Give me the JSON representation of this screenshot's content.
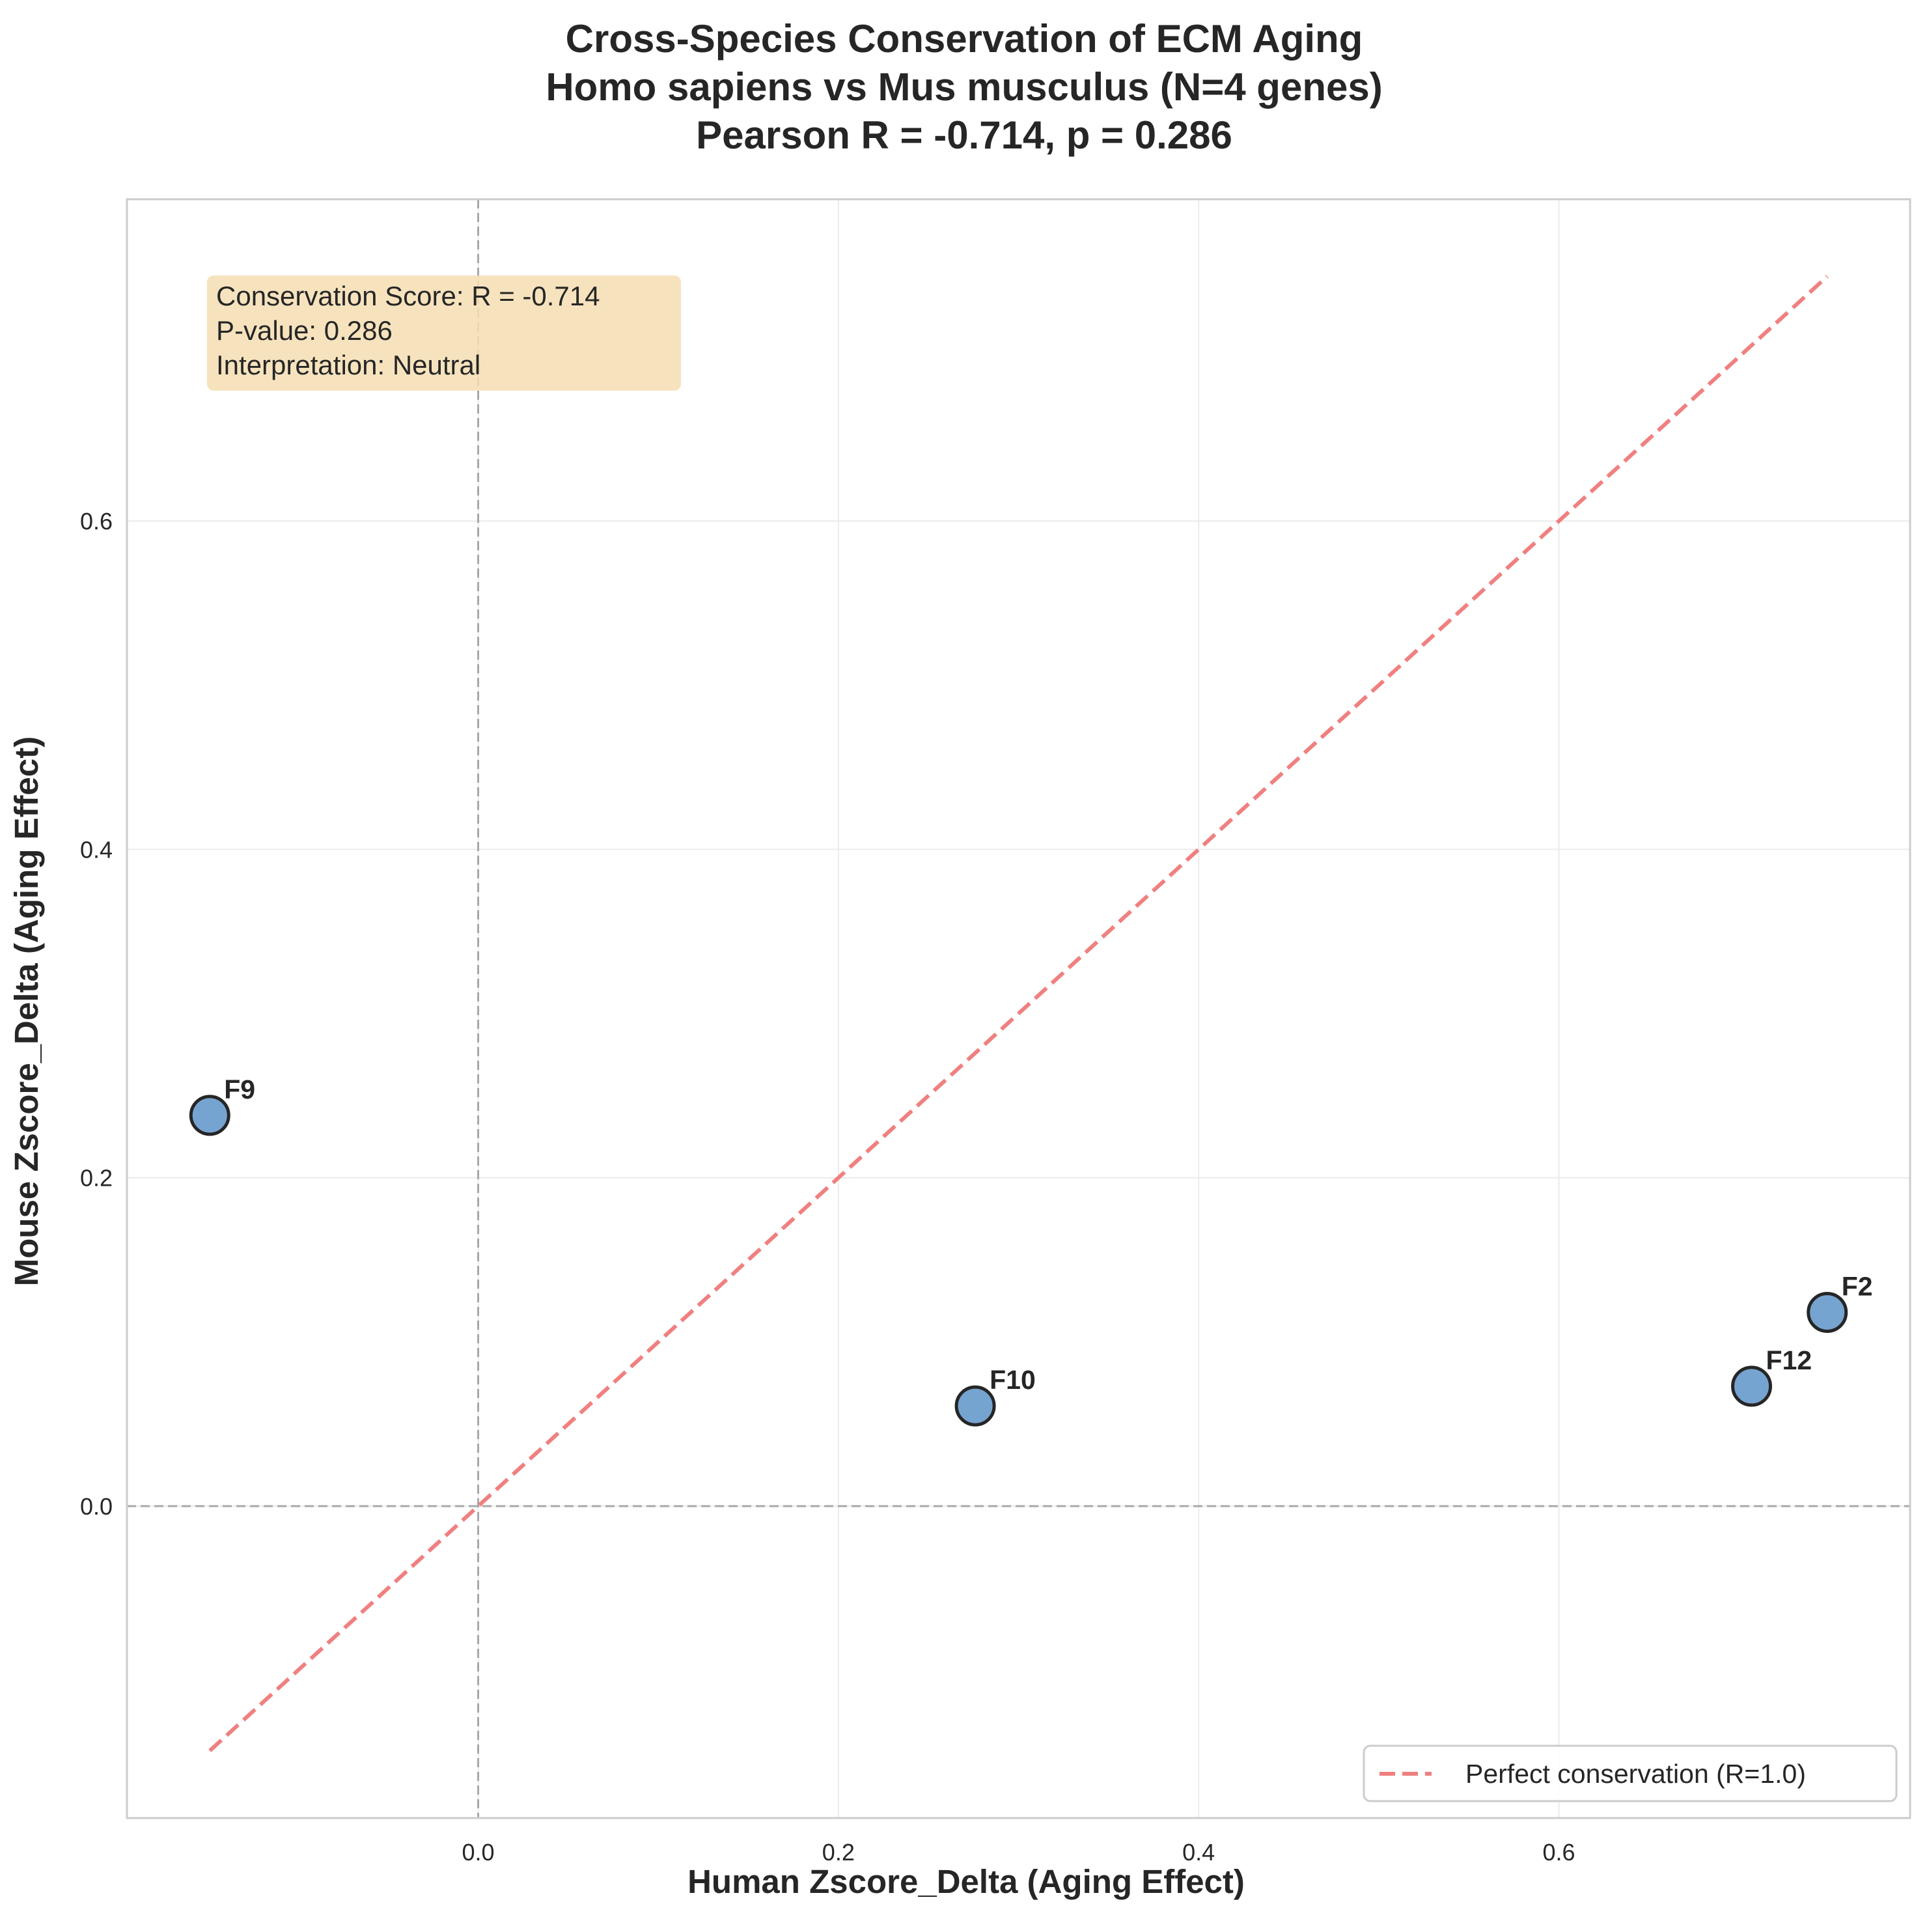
{
  "chart_data": {
    "type": "scatter",
    "title": [
      "Cross-Species Conservation of ECM Aging",
      "Homo sapiens vs Mus musculus (N=4 genes)",
      "Pearson R = -0.714, p = 0.286"
    ],
    "xlabel": "Human Zscore_Delta (Aging Effect)",
    "ylabel": "Mouse Zscore_Delta (Aging Effect)",
    "xlim": [
      -0.195,
      0.795
    ],
    "ylim": [
      -0.19,
      0.796
    ],
    "xticks": [
      0.0,
      0.2,
      0.4,
      0.6
    ],
    "yticks": [
      0.0,
      0.2,
      0.4,
      0.6
    ],
    "xtick_labels": [
      "0.0",
      "0.2",
      "0.4",
      "0.6"
    ],
    "ytick_labels": [
      "0.0",
      "0.2",
      "0.4",
      "0.6"
    ],
    "grid": true,
    "points": [
      {
        "label": "F9",
        "x": -0.149,
        "y": 0.238
      },
      {
        "label": "F10",
        "x": 0.276,
        "y": 0.061
      },
      {
        "label": "F12",
        "x": 0.707,
        "y": 0.073
      },
      {
        "label": "F2",
        "x": 0.749,
        "y": 0.118
      }
    ],
    "reference_line": {
      "name": "Perfect conservation (R=1.0)",
      "x": [
        -0.149,
        0.749
      ],
      "y": [
        -0.149,
        0.749
      ],
      "style": "dashed",
      "color": "#f08080"
    },
    "zero_lines": {
      "x": 0,
      "y": 0,
      "style": "dashed",
      "color": "#a0a0a0"
    },
    "annotation": [
      "Conservation Score: R = -0.714",
      "P-value: 0.286",
      "Interpretation: Neutral"
    ],
    "legend": {
      "position": "bottom-right",
      "entries": [
        "Perfect conservation (R=1.0)"
      ]
    },
    "colors": {
      "point_fill": "#6f9fcf",
      "point_edge": "#262626",
      "annotation_bg": "#f5deb3",
      "grid": "#ebebeb",
      "frame": "#cccccc"
    }
  }
}
